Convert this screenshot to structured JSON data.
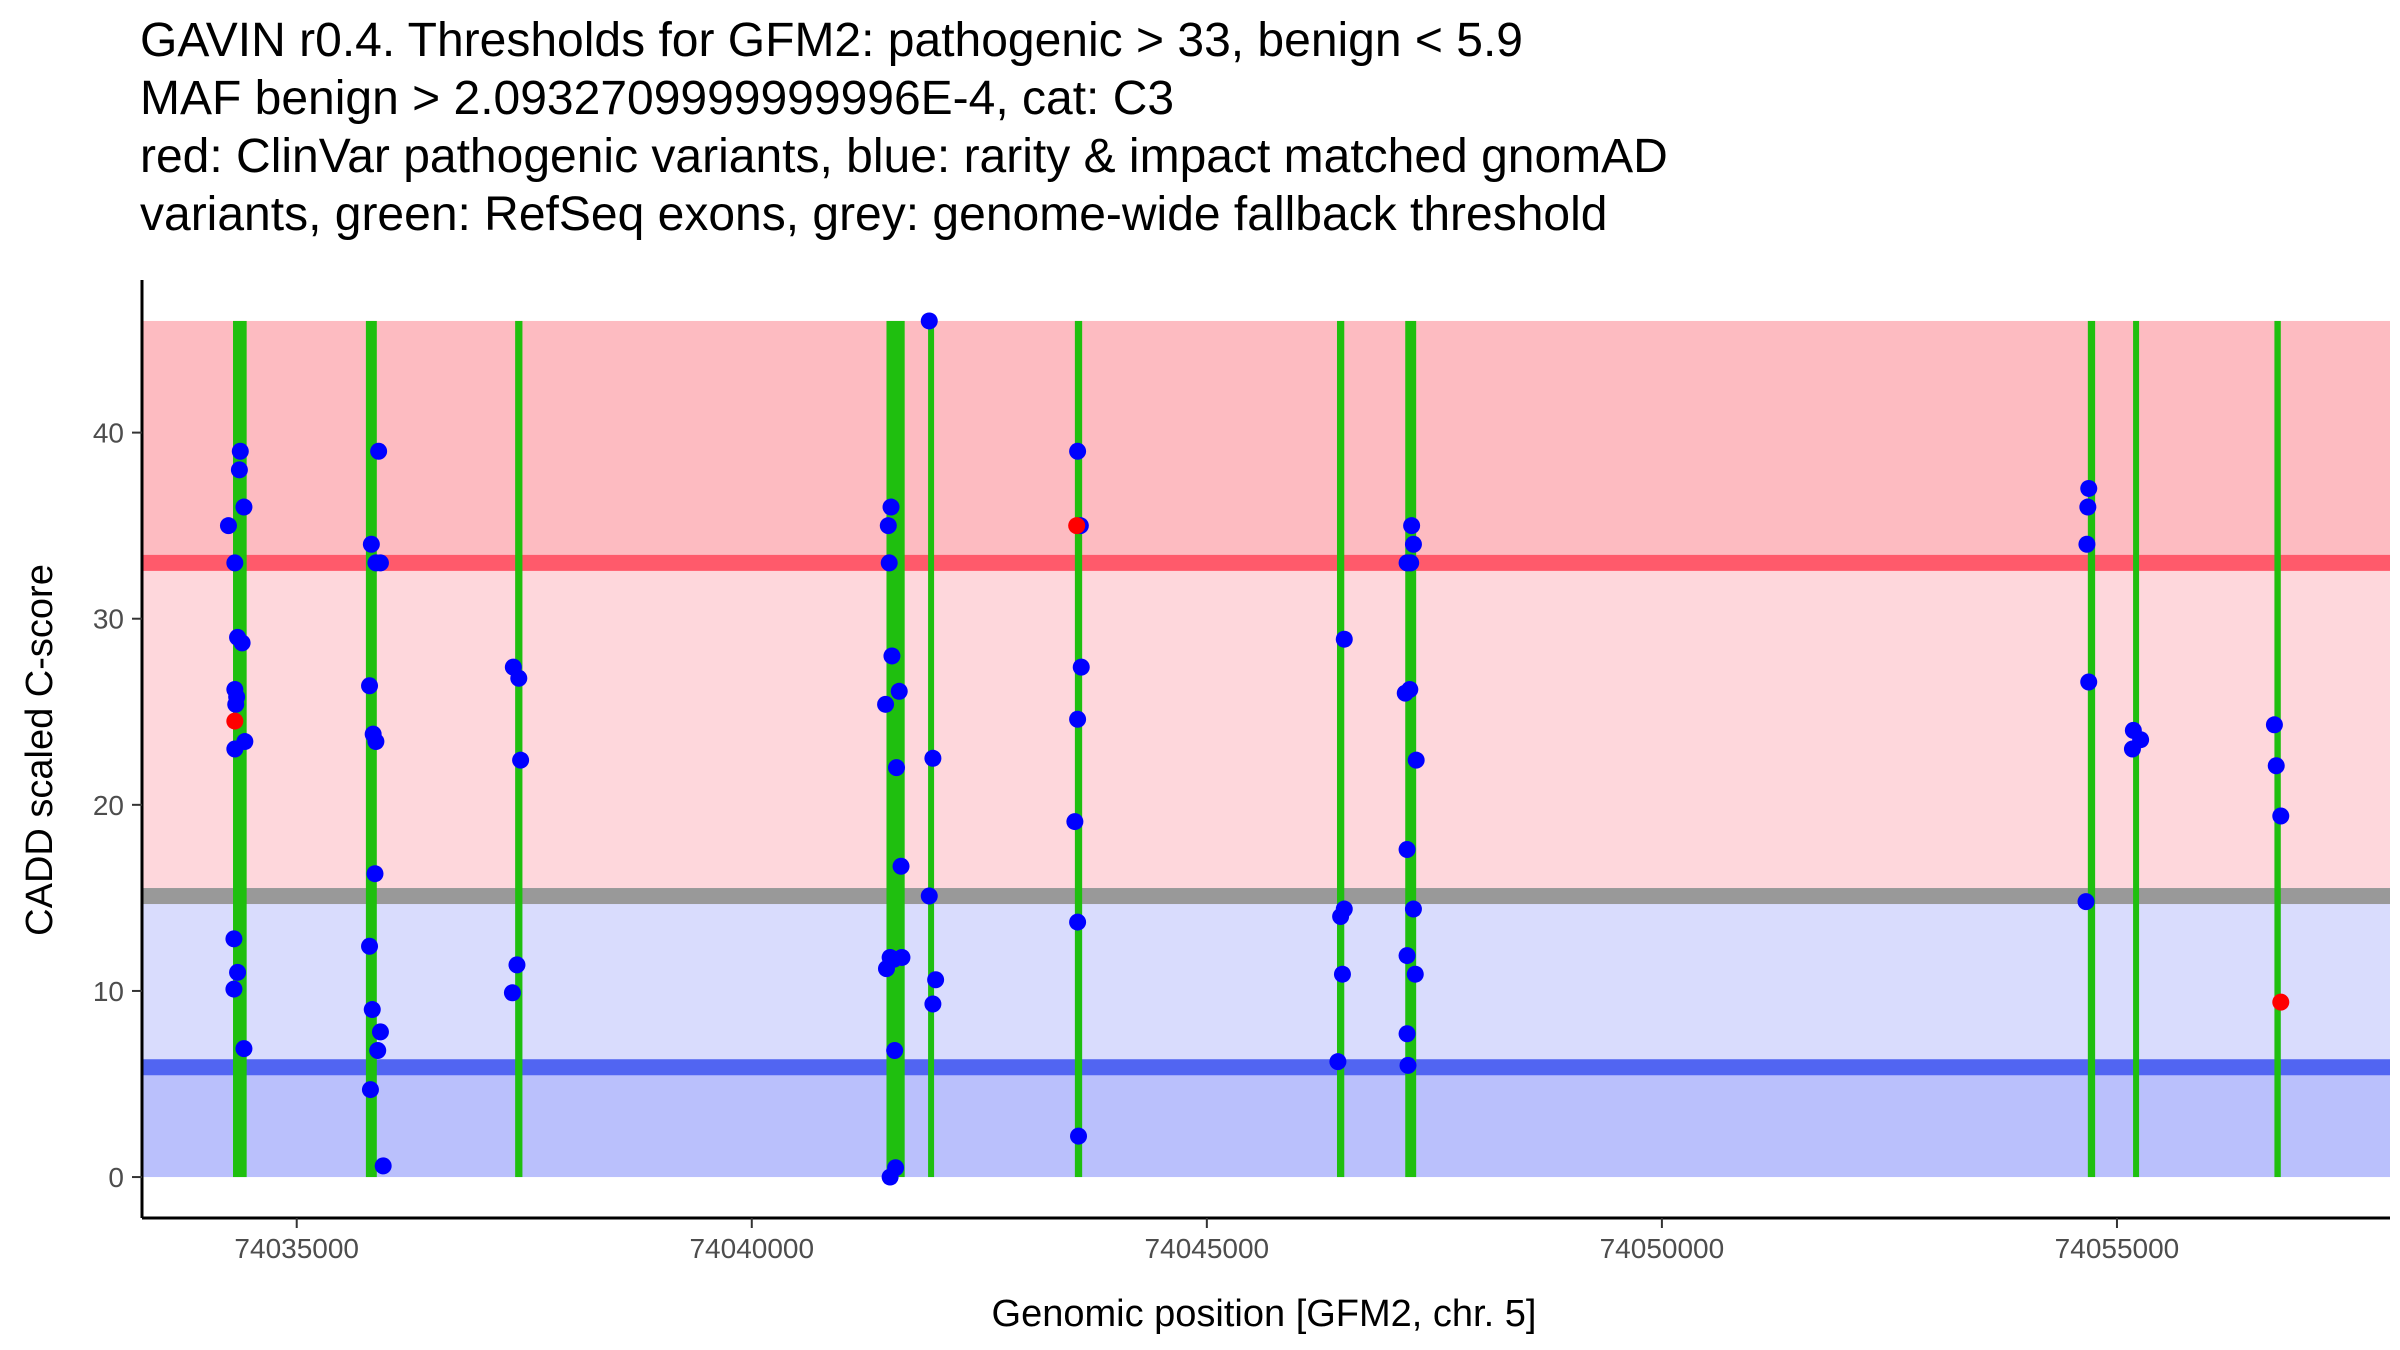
{
  "chart_data": {
    "type": "scatter",
    "title_lines": [
      "GAVIN r0.4. Thresholds for GFM2: pathogenic > 33, benign < 5.9",
      "MAF benign > 2.0932709999999996E-4, cat: C3",
      "red: ClinVar pathogenic variants, blue: rarity & impact matched gnomAD",
      "variants, green: RefSeq exons, grey: genome-wide fallback threshold"
    ],
    "xlabel": "Genomic position [GFM2, chr. 5]",
    "ylabel": "CADD scaled C-score",
    "xlim": [
      74033300,
      74058000
    ],
    "ylim": [
      -2.2,
      48.2
    ],
    "x_ticks": [
      {
        "value": 74035000,
        "label": "74035000"
      },
      {
        "value": 74040000,
        "label": "74040000"
      },
      {
        "value": 74045000,
        "label": "74045000"
      },
      {
        "value": 74050000,
        "label": "74050000"
      },
      {
        "value": 74055000,
        "label": "74055000"
      }
    ],
    "y_ticks": [
      {
        "value": 0,
        "label": "0"
      },
      {
        "value": 10,
        "label": "10"
      },
      {
        "value": 20,
        "label": "20"
      },
      {
        "value": 30,
        "label": "30"
      },
      {
        "value": 40,
        "label": "40"
      }
    ],
    "bands": [
      {
        "name": "pathogenic-zone",
        "y0": 33,
        "y1": 46,
        "color": "#fdbbc1"
      },
      {
        "name": "pathogenic-to-fallback-zone",
        "y0": 15.1,
        "y1": 33,
        "color": "#fed7dc"
      },
      {
        "name": "fallback-to-benign-zone",
        "y0": 5.9,
        "y1": 15.1,
        "color": "#d9dcfd"
      },
      {
        "name": "benign-zone",
        "y0": 0,
        "y1": 5.9,
        "color": "#bac0fc"
      }
    ],
    "threshold_lines": [
      {
        "name": "pathogenic-threshold",
        "y": 33,
        "color": "#ff5a6b",
        "label": "pathogenic > 33"
      },
      {
        "name": "fallback-threshold",
        "y": 15.1,
        "color": "#999999",
        "label": "genome-wide fallback"
      },
      {
        "name": "benign-threshold",
        "y": 5.9,
        "color": "#5165f2",
        "label": "benign < 5.9"
      }
    ],
    "exons": [
      {
        "start": 74034300,
        "end": 74034450
      },
      {
        "start": 74035760,
        "end": 74035880
      },
      {
        "start": 74037400,
        "end": 74037480
      },
      {
        "start": 74041480,
        "end": 74041680
      },
      {
        "start": 74041940,
        "end": 74042000
      },
      {
        "start": 74043550,
        "end": 74043630
      },
      {
        "start": 74046430,
        "end": 74046510
      },
      {
        "start": 74047180,
        "end": 74047300
      },
      {
        "start": 74054680,
        "end": 74054760
      },
      {
        "start": 74055180,
        "end": 74055240
      },
      {
        "start": 74056730,
        "end": 74056800
      }
    ],
    "series": [
      {
        "name": "gnomAD variants (blue)",
        "color": "#0000ff",
        "points": [
          [
            74034250,
            35
          ],
          [
            74034320,
            33
          ],
          [
            74034350,
            29
          ],
          [
            74034400,
            28.7
          ],
          [
            74034320,
            26.2
          ],
          [
            74034340,
            25.8
          ],
          [
            74034330,
            25.4
          ],
          [
            74034320,
            23
          ],
          [
            74034430,
            23.4
          ],
          [
            74034310,
            12.8
          ],
          [
            74034350,
            11
          ],
          [
            74034310,
            10.1
          ],
          [
            74034420,
            6.9
          ],
          [
            74034380,
            39
          ],
          [
            74034370,
            38
          ],
          [
            74034420,
            36
          ],
          [
            74035820,
            34
          ],
          [
            74035870,
            33
          ],
          [
            74035920,
            33
          ],
          [
            74035900,
            39
          ],
          [
            74035800,
            26.4
          ],
          [
            74035840,
            23.8
          ],
          [
            74035870,
            23.4
          ],
          [
            74035860,
            16.3
          ],
          [
            74035800,
            12.4
          ],
          [
            74035830,
            9
          ],
          [
            74035920,
            7.8
          ],
          [
            74035890,
            6.8
          ],
          [
            74035810,
            4.7
          ],
          [
            74035950,
            0.6
          ],
          [
            74037380,
            27.4
          ],
          [
            74037440,
            26.8
          ],
          [
            74037460,
            22.4
          ],
          [
            74037420,
            11.4
          ],
          [
            74037370,
            9.9
          ],
          [
            74041530,
            36
          ],
          [
            74041500,
            35
          ],
          [
            74041510,
            33
          ],
          [
            74041540,
            28
          ],
          [
            74041470,
            25.4
          ],
          [
            74041620,
            26.1
          ],
          [
            74041590,
            22
          ],
          [
            74041640,
            16.7
          ],
          [
            74041520,
            11.8
          ],
          [
            74041560,
            11.7
          ],
          [
            74041480,
            11.2
          ],
          [
            74041650,
            11.8
          ],
          [
            74041570,
            6.8
          ],
          [
            74041580,
            0.5
          ],
          [
            74041520,
            0
          ],
          [
            74041950,
            46
          ],
          [
            74041950,
            15.1
          ],
          [
            74041990,
            22.5
          ],
          [
            74042020,
            10.6
          ],
          [
            74041990,
            9.3
          ],
          [
            74043580,
            39
          ],
          [
            74043610,
            35
          ],
          [
            74043620,
            27.4
          ],
          [
            74043580,
            24.6
          ],
          [
            74043550,
            19.1
          ],
          [
            74043580,
            13.7
          ],
          [
            74043590,
            2.2
          ],
          [
            74046510,
            28.9
          ],
          [
            74046470,
            14
          ],
          [
            74046510,
            14.4
          ],
          [
            74046490,
            10.9
          ],
          [
            74046440,
            6.2
          ],
          [
            74047250,
            35
          ],
          [
            74047270,
            34
          ],
          [
            74047200,
            33
          ],
          [
            74047240,
            33
          ],
          [
            74047180,
            26
          ],
          [
            74047230,
            26.2
          ],
          [
            74047300,
            22.4
          ],
          [
            74047200,
            17.6
          ],
          [
            74047270,
            14.4
          ],
          [
            74047200,
            11.9
          ],
          [
            74047290,
            10.9
          ],
          [
            74047200,
            7.7
          ],
          [
            74047210,
            6
          ],
          [
            74054690,
            37
          ],
          [
            74054680,
            36
          ],
          [
            74054670,
            34
          ],
          [
            74054690,
            26.6
          ],
          [
            74054660,
            14.8
          ],
          [
            74055180,
            24
          ],
          [
            74055170,
            23
          ],
          [
            74055260,
            23.5
          ],
          [
            74056730,
            24.3
          ],
          [
            74056750,
            22.1
          ],
          [
            74056800,
            19.4
          ]
        ]
      },
      {
        "name": "ClinVar pathogenic variants (red)",
        "color": "#ff0000",
        "points": [
          [
            74034320,
            24.5
          ],
          [
            74043570,
            35
          ],
          [
            74056800,
            9.4
          ]
        ]
      }
    ]
  }
}
